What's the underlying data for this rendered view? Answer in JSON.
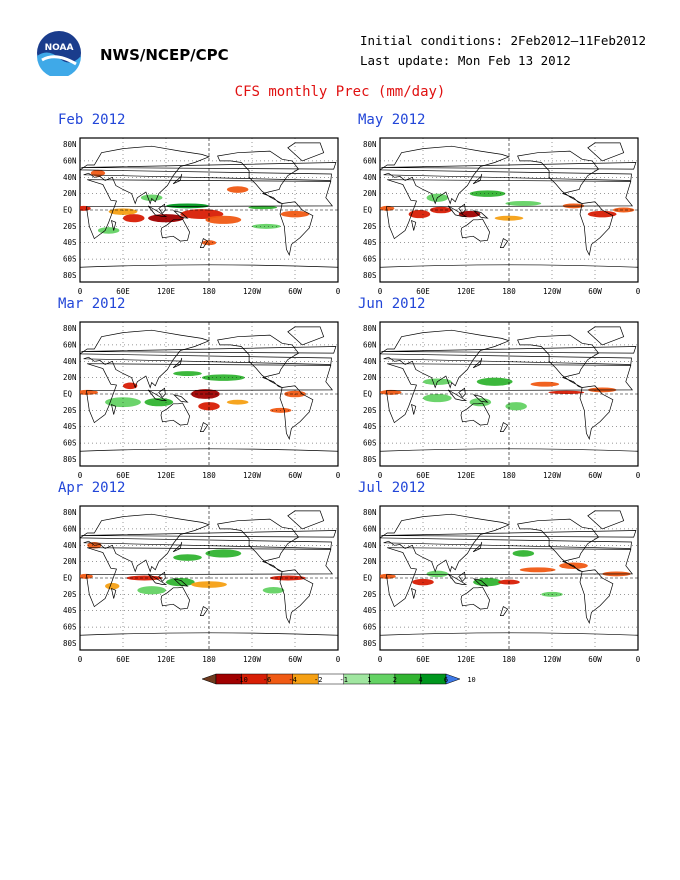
{
  "header": {
    "org": "NWS/NCEP/CPC",
    "initial_conditions": "Initial conditions: 2Feb2012–11Feb2012",
    "last_update": "Last update: Mon Feb 13 2012",
    "title": "CFS monthly Prec (mm/day)"
  },
  "logo": {
    "text": "NOAA",
    "icon": "noaa-logo-icon"
  },
  "axes": {
    "lat_labels": [
      "80N",
      "60N",
      "40N",
      "20N",
      "EQ",
      "20S",
      "40S",
      "60S",
      "80S"
    ],
    "lon_labels": [
      "0",
      "60E",
      "120E",
      "180",
      "120W",
      "60W",
      "0"
    ]
  },
  "panels": [
    {
      "title": "Feb 2012"
    },
    {
      "title": "May 2012"
    },
    {
      "title": "Mar 2012"
    },
    {
      "title": "Jun 2012"
    },
    {
      "title": "Apr 2012"
    },
    {
      "title": "Jul 2012"
    }
  ],
  "colorbar": {
    "labels": [
      "-10",
      "-6",
      "-4",
      "-2",
      "-1",
      "1",
      "2",
      "4",
      "6",
      "10"
    ],
    "colors": [
      "#6e3a1e",
      "#a00000",
      "#d81e05",
      "#f05a14",
      "#f5a014",
      "#ffffff",
      "#a0e6a0",
      "#64d264",
      "#32b432",
      "#00961e",
      "#3c78e6"
    ]
  }
}
